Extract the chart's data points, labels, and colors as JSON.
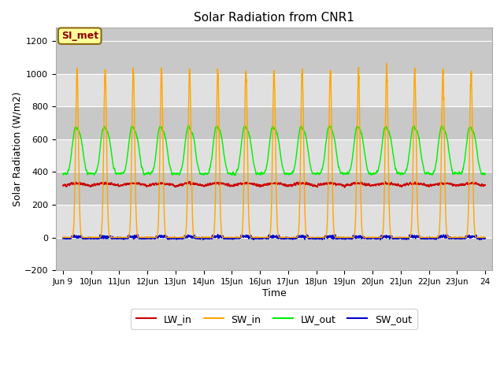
{
  "title": "Solar Radiation from CNR1",
  "xlabel": "Time",
  "ylabel": "Solar Radiation (W/m2)",
  "ylim": [
    -200,
    1280
  ],
  "yticks": [
    -200,
    0,
    200,
    400,
    600,
    800,
    1000,
    1200
  ],
  "colors": {
    "LW_in": "#cc0000",
    "SW_in": "#ffa500",
    "LW_out": "#00ee00",
    "SW_out": "#0000cc"
  },
  "plot_bg": "#c8c8c8",
  "band_color_light": "#e0e0e0",
  "annotation_text": "SI_met",
  "annotation_bg": "#ffff99",
  "annotation_border": "#8B6914",
  "n_days": 15,
  "pts_per_day": 288
}
